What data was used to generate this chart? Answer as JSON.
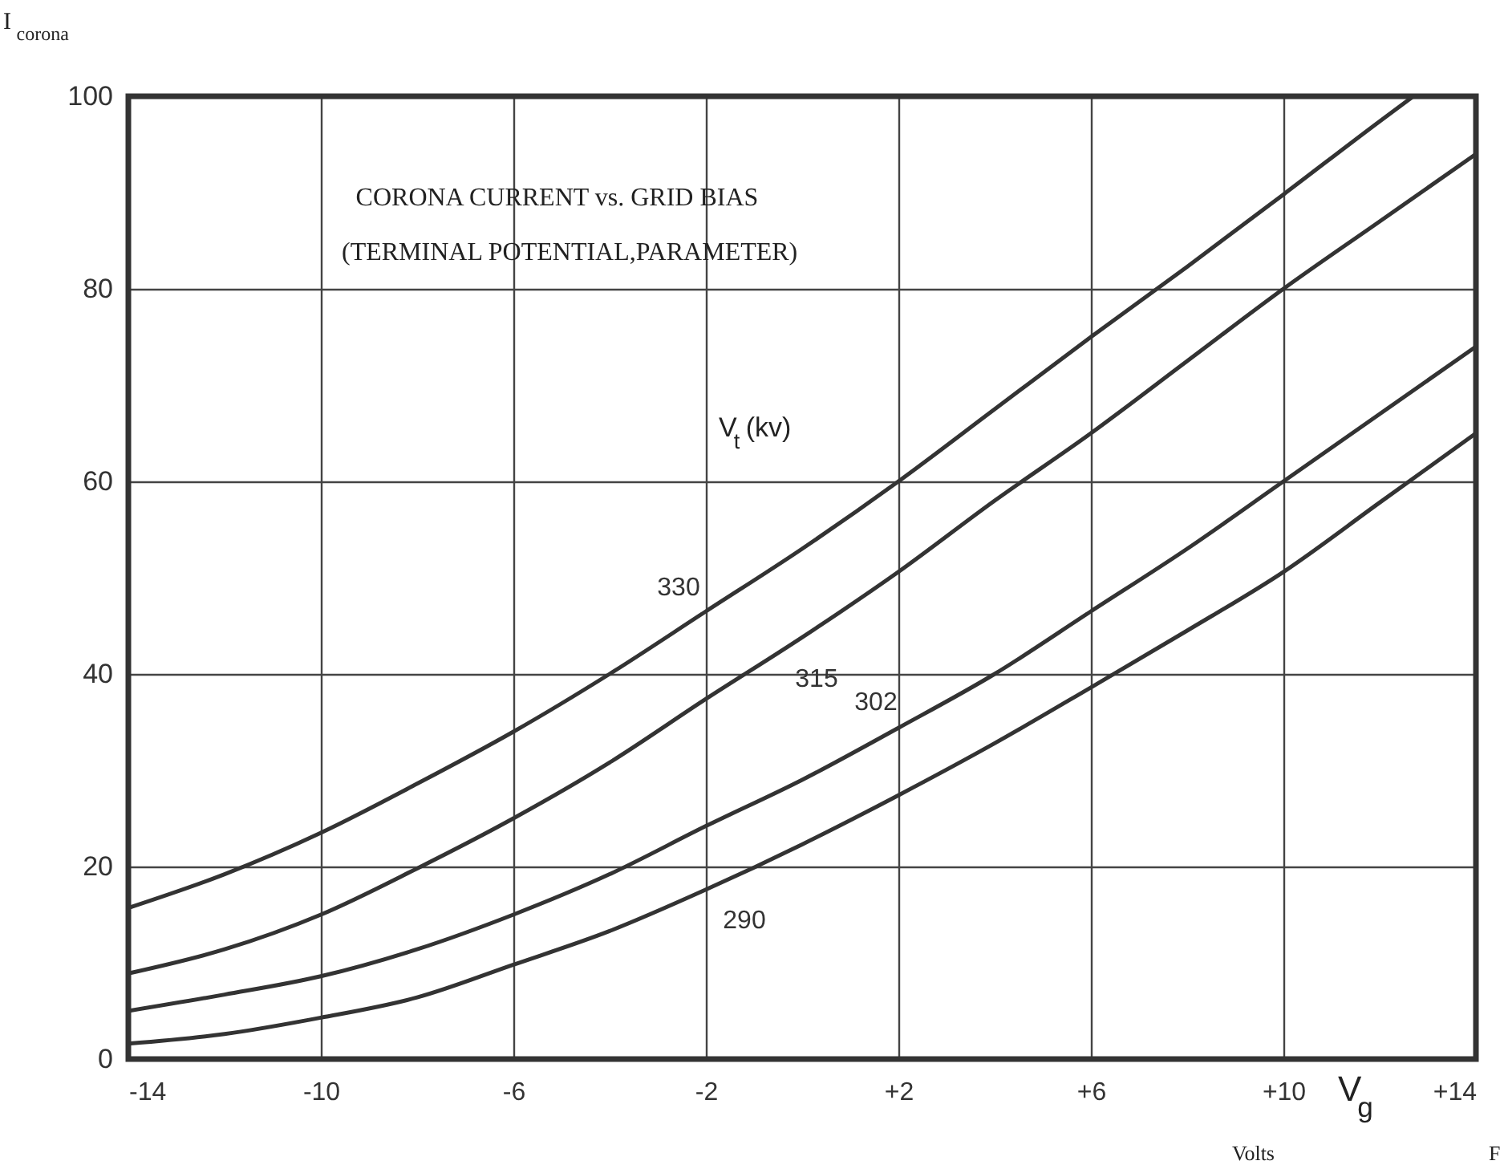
{
  "chart_data": {
    "type": "line",
    "title": "CORONA CURRENT vs. GRID BIAS",
    "subtitle": "(TERMINAL POTENTIAL,PARAMETER)",
    "xlabel": "V$_{g}$",
    "ylabel": "I$_{corona}$",
    "x": [
      -14,
      -12,
      -10,
      -8,
      -6,
      -4,
      -2,
      0,
      2,
      4,
      6,
      8,
      10,
      12,
      14
    ],
    "series": [
      {
        "name": "330",
        "color": "#333333",
        "x": [
          -14,
          -12,
          -10,
          -8,
          -6,
          -4,
          -2,
          0,
          2,
          4,
          6,
          8,
          10,
          12,
          12.7
        ],
        "values": [
          15.7,
          19.2,
          23.5,
          28.6,
          34,
          40,
          46.5,
          53,
          60,
          67.5,
          75,
          82.3,
          89.8,
          97.4,
          100
        ]
      },
      {
        "name": "315",
        "color": "#333333",
        "values": [
          8.9,
          11.4,
          15,
          19.8,
          25,
          30.8,
          37.4,
          43.8,
          50.6,
          58,
          65,
          72.5,
          80,
          87,
          94
        ]
      },
      {
        "name": "302",
        "color": "#333333",
        "values": [
          5,
          6.7,
          8.6,
          11.4,
          15,
          19.2,
          24.2,
          29,
          34.4,
          40,
          46.5,
          53,
          60,
          67,
          74
        ]
      },
      {
        "name": "290",
        "color": "#333333",
        "values": [
          1.6,
          2.6,
          4.3,
          6.4,
          9.8,
          13.3,
          17.6,
          22.3,
          27.4,
          32.8,
          38.6,
          44.5,
          50.6,
          57.8,
          65
        ]
      }
    ],
    "annotations": [
      "V$_{t}$ (kv)",
      "Volts",
      "F"
    ],
    "xlim": [
      -14,
      14
    ],
    "xticks": [
      -14,
      -10,
      -6,
      -2,
      {
        "value": 2,
        "label": "+2"
      },
      {
        "value": 6,
        "label": "+6"
      },
      {
        "value": 10,
        "label": "+10"
      },
      {
        "value": 14,
        "label": "+14"
      }
    ],
    "ylim": [
      0,
      100
    ],
    "yticks": [
      0,
      20,
      40,
      60,
      80,
      100
    ],
    "grid": true,
    "marker": "none",
    "line_style": "solid",
    "legend": false
  }
}
